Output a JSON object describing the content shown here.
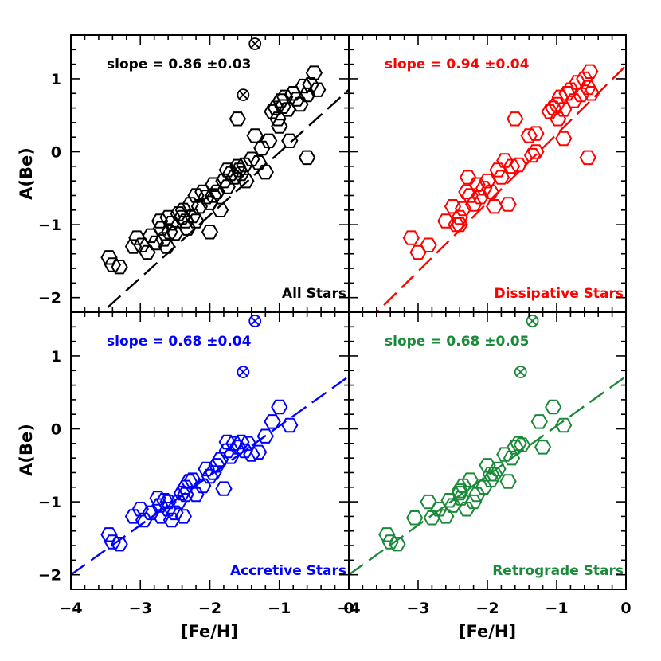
{
  "chart_data": {
    "type": "scatter",
    "xlim": [
      -4,
      0
    ],
    "ylim": [
      -2.2,
      1.6
    ],
    "xticks": [
      {
        "v": -4,
        "label": "−4"
      },
      {
        "v": -3,
        "label": "−3"
      },
      {
        "v": -2,
        "label": "−2"
      },
      {
        "v": -1,
        "label": "−1"
      },
      {
        "v": 0,
        "label": "0"
      }
    ],
    "yticks_top": [
      {
        "v": 1,
        "label": "1"
      },
      {
        "v": 0,
        "label": "0"
      },
      {
        "v": -1,
        "label": "−1"
      },
      {
        "v": -2,
        "label": "−2"
      }
    ],
    "yticks_bottom": [
      {
        "v": 1,
        "label": "1"
      },
      {
        "v": 0,
        "label": "0"
      },
      {
        "v": -1,
        "label": "−1"
      },
      {
        "v": -2,
        "label": "−2"
      }
    ],
    "xlabel": "[Fe/H]",
    "ylabel": "A(Be)",
    "panels": [
      {
        "label": "All Stars",
        "slope_text": "slope = 0.86 ±0.03",
        "color": "#000000",
        "fit": {
          "slope": 0.86,
          "intercept": 0.85
        },
        "crossed": [
          [
            -1.35,
            1.48
          ],
          [
            -1.52,
            0.78
          ]
        ],
        "points": [
          [
            -3.45,
            -1.45
          ],
          [
            -3.4,
            -1.55
          ],
          [
            -3.3,
            -1.58
          ],
          [
            -3.05,
            -1.18
          ],
          [
            -2.98,
            -1.28
          ],
          [
            -2.9,
            -1.38
          ],
          [
            -2.85,
            -1.15
          ],
          [
            -2.78,
            -1.25
          ],
          [
            -2.72,
            -0.95
          ],
          [
            -2.7,
            -1.05
          ],
          [
            -2.66,
            -1.2
          ],
          [
            -2.62,
            -1.3
          ],
          [
            -2.58,
            -1.1
          ],
          [
            -2.55,
            -0.98
          ],
          [
            -2.5,
            -1.12
          ],
          [
            -2.45,
            -0.85
          ],
          [
            -2.4,
            -0.9
          ],
          [
            -2.38,
            -0.8
          ],
          [
            -2.35,
            -0.95
          ],
          [
            -2.32,
            -1.05
          ],
          [
            -2.28,
            -0.72
          ],
          [
            -2.25,
            -0.88
          ],
          [
            -2.2,
            -0.6
          ],
          [
            -2.15,
            -0.75
          ],
          [
            -2.1,
            -0.55
          ],
          [
            -2.05,
            -0.62
          ],
          [
            -2.0,
            -0.7
          ],
          [
            -1.95,
            -0.45
          ],
          [
            -1.9,
            -0.55
          ],
          [
            -1.85,
            -0.8
          ],
          [
            -1.8,
            -0.4
          ],
          [
            -1.75,
            -0.48
          ],
          [
            -1.7,
            -0.3
          ],
          [
            -1.65,
            -0.35
          ],
          [
            -1.6,
            -0.2
          ],
          [
            -1.58,
            -0.25
          ],
          [
            -1.55,
            -0.3
          ],
          [
            -1.5,
            -0.18
          ],
          [
            -1.48,
            -0.4
          ],
          [
            -1.4,
            -0.1
          ],
          [
            -1.35,
            0.22
          ],
          [
            -1.3,
            -0.15
          ],
          [
            -1.25,
            0.05
          ],
          [
            -1.2,
            -0.28
          ],
          [
            -1.15,
            0.15
          ],
          [
            -1.1,
            0.55
          ],
          [
            -1.05,
            0.6
          ],
          [
            -1.02,
            0.45
          ],
          [
            -1.0,
            0.35
          ],
          [
            -0.98,
            0.7
          ],
          [
            -0.95,
            0.62
          ],
          [
            -0.92,
            0.75
          ],
          [
            -0.88,
            0.58
          ],
          [
            -0.85,
            0.15
          ],
          [
            -0.8,
            0.8
          ],
          [
            -0.75,
            0.72
          ],
          [
            -0.7,
            0.65
          ],
          [
            -0.65,
            0.9
          ],
          [
            -0.6,
            0.78
          ],
          [
            -0.55,
            0.92
          ],
          [
            -0.5,
            1.08
          ],
          [
            -0.45,
            0.85
          ],
          [
            -0.6,
            -0.08
          ],
          [
            -1.6,
            0.45
          ],
          [
            -2.0,
            -1.1
          ],
          [
            -2.6,
            -0.9
          ],
          [
            -3.1,
            -1.3
          ],
          [
            -2.2,
            -0.95
          ],
          [
            -1.75,
            -0.25
          ],
          [
            -1.95,
            -0.6
          ]
        ]
      },
      {
        "label": "Dissipative Stars",
        "slope_text": "slope = 0.94 ±0.04",
        "color": "#ff0000",
        "fit": {
          "slope": 0.94,
          "intercept": 1.18
        },
        "crossed": [],
        "points": [
          [
            -3.1,
            -1.18
          ],
          [
            -3.0,
            -1.38
          ],
          [
            -2.85,
            -1.28
          ],
          [
            -2.6,
            -0.95
          ],
          [
            -2.5,
            -0.75
          ],
          [
            -2.45,
            -1.0
          ],
          [
            -2.4,
            -0.9
          ],
          [
            -2.35,
            -0.78
          ],
          [
            -2.3,
            -0.55
          ],
          [
            -2.28,
            -0.35
          ],
          [
            -2.25,
            -0.6
          ],
          [
            -2.2,
            -0.72
          ],
          [
            -2.15,
            -0.45
          ],
          [
            -2.1,
            -0.62
          ],
          [
            -2.05,
            -0.5
          ],
          [
            -2.0,
            -0.4
          ],
          [
            -1.95,
            -0.55
          ],
          [
            -1.9,
            -0.75
          ],
          [
            -1.85,
            -0.25
          ],
          [
            -1.8,
            -0.35
          ],
          [
            -1.75,
            -0.12
          ],
          [
            -1.7,
            -0.72
          ],
          [
            -1.65,
            -0.2
          ],
          [
            -1.6,
            0.45
          ],
          [
            -1.55,
            -0.18
          ],
          [
            -1.4,
            0.22
          ],
          [
            -1.35,
            -0.05
          ],
          [
            -1.3,
            0.0
          ],
          [
            -1.1,
            0.55
          ],
          [
            -1.05,
            0.6
          ],
          [
            -1.0,
            0.65
          ],
          [
            -0.98,
            0.45
          ],
          [
            -0.95,
            0.75
          ],
          [
            -0.9,
            0.58
          ],
          [
            -0.85,
            0.8
          ],
          [
            -0.8,
            0.85
          ],
          [
            -0.75,
            0.7
          ],
          [
            -0.7,
            0.95
          ],
          [
            -0.65,
            0.78
          ],
          [
            -0.6,
            1.0
          ],
          [
            -0.55,
            0.88
          ],
          [
            -0.52,
            1.1
          ],
          [
            -0.5,
            0.8
          ],
          [
            -0.55,
            -0.08
          ],
          [
            -0.9,
            0.18
          ],
          [
            -1.3,
            0.25
          ],
          [
            -2.4,
            -1.0
          ]
        ]
      },
      {
        "label": "Accretive Stars",
        "slope_text": "slope = 0.68 ±0.04",
        "color": "#0000ff",
        "fit": {
          "slope": 0.68,
          "intercept": 0.72
        },
        "crossed": [
          [
            -1.35,
            1.48
          ],
          [
            -1.52,
            0.78
          ]
        ],
        "points": [
          [
            -3.45,
            -1.45
          ],
          [
            -3.4,
            -1.55
          ],
          [
            -3.3,
            -1.58
          ],
          [
            -3.1,
            -1.2
          ],
          [
            -3.0,
            -1.1
          ],
          [
            -2.95,
            -1.25
          ],
          [
            -2.85,
            -1.15
          ],
          [
            -2.75,
            -0.95
          ],
          [
            -2.72,
            -1.05
          ],
          [
            -2.7,
            -1.2
          ],
          [
            -2.65,
            -0.98
          ],
          [
            -2.6,
            -1.1
          ],
          [
            -2.55,
            -1.25
          ],
          [
            -2.5,
            -1.15
          ],
          [
            -2.45,
            -1.0
          ],
          [
            -2.4,
            -0.88
          ],
          [
            -2.38,
            -1.2
          ],
          [
            -2.35,
            -0.8
          ],
          [
            -2.3,
            -0.72
          ],
          [
            -2.25,
            -0.7
          ],
          [
            -2.2,
            -0.9
          ],
          [
            -2.1,
            -0.78
          ],
          [
            -2.05,
            -0.55
          ],
          [
            -2.0,
            -0.65
          ],
          [
            -1.95,
            -0.6
          ],
          [
            -1.9,
            -0.5
          ],
          [
            -1.85,
            -0.42
          ],
          [
            -1.8,
            -0.82
          ],
          [
            -1.75,
            -0.3
          ],
          [
            -1.7,
            -0.38
          ],
          [
            -1.65,
            -0.2
          ],
          [
            -1.6,
            -0.25
          ],
          [
            -1.55,
            -0.18
          ],
          [
            -1.5,
            -0.3
          ],
          [
            -1.45,
            -0.2
          ],
          [
            -1.4,
            -0.35
          ],
          [
            -1.3,
            -0.32
          ],
          [
            -1.2,
            -0.1
          ],
          [
            -1.1,
            0.1
          ],
          [
            -1.0,
            0.3
          ],
          [
            -0.85,
            0.05
          ],
          [
            -2.35,
            -0.9
          ],
          [
            -2.6,
            -1.0
          ],
          [
            -1.75,
            -0.18
          ]
        ]
      },
      {
        "label": "Retrograde Stars",
        "slope_text": "slope = 0.68 ±0.05",
        "color": "#1a8a3a",
        "fit": {
          "slope": 0.68,
          "intercept": 0.72
        },
        "crossed": [
          [
            -1.35,
            1.48
          ],
          [
            -1.52,
            0.78
          ]
        ],
        "points": [
          [
            -3.45,
            -1.45
          ],
          [
            -3.4,
            -1.55
          ],
          [
            -3.3,
            -1.58
          ],
          [
            -3.05,
            -1.22
          ],
          [
            -2.85,
            -1.0
          ],
          [
            -2.8,
            -1.22
          ],
          [
            -2.7,
            -1.1
          ],
          [
            -2.6,
            -1.2
          ],
          [
            -2.55,
            -0.98
          ],
          [
            -2.5,
            -1.05
          ],
          [
            -2.4,
            -0.85
          ],
          [
            -2.38,
            -0.95
          ],
          [
            -2.35,
            -0.78
          ],
          [
            -2.3,
            -1.1
          ],
          [
            -2.25,
            -0.7
          ],
          [
            -2.2,
            -1.0
          ],
          [
            -2.15,
            -0.9
          ],
          [
            -2.05,
            -0.8
          ],
          [
            -2.0,
            -0.5
          ],
          [
            -1.95,
            -0.7
          ],
          [
            -1.9,
            -0.62
          ],
          [
            -1.85,
            -0.55
          ],
          [
            -1.75,
            -0.35
          ],
          [
            -1.7,
            -0.72
          ],
          [
            -1.65,
            -0.4
          ],
          [
            -1.6,
            -0.25
          ],
          [
            -1.55,
            -0.2
          ],
          [
            -1.5,
            -0.22
          ],
          [
            -1.25,
            0.1
          ],
          [
            -1.2,
            -0.25
          ],
          [
            -1.05,
            0.3
          ],
          [
            -0.9,
            0.05
          ],
          [
            -2.4,
            -0.88
          ],
          [
            -1.95,
            -0.62
          ]
        ]
      }
    ]
  }
}
